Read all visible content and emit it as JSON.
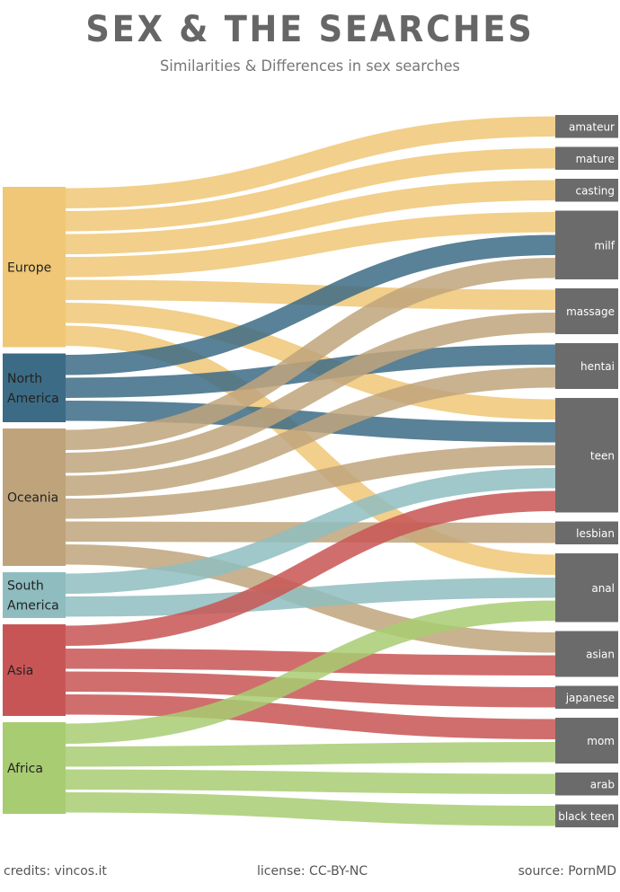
{
  "title": "SEX & THE  SEARCHES",
  "subtitle": "Similarities & Differences in sex searches",
  "footer": {
    "credits": "credits: vincos.it",
    "license": "license: CC-BY-NC",
    "source": "source: PornMD"
  },
  "colors": {
    "Europe": "#f0c776",
    "North America": "#3c6b85",
    "Oceania": "#bfa47b",
    "South America": "#8fbdbf",
    "Asia": "#c85555",
    "Africa": "#a8cc72",
    "category_box": "#6b6b6b",
    "category_text": "#ffffff"
  },
  "sources": [
    {
      "id": "Europe",
      "label_lines": [
        "Europe"
      ]
    },
    {
      "id": "North America",
      "label_lines": [
        "North",
        "America"
      ]
    },
    {
      "id": "Oceania",
      "label_lines": [
        "Oceania"
      ]
    },
    {
      "id": "South America",
      "label_lines": [
        "South",
        "America"
      ]
    },
    {
      "id": "Asia",
      "label_lines": [
        "Asia"
      ]
    },
    {
      "id": "Africa",
      "label_lines": [
        "Africa"
      ]
    }
  ],
  "categories": [
    {
      "id": "amateur",
      "label": "amateur"
    },
    {
      "id": "mature",
      "label": "mature"
    },
    {
      "id": "casting",
      "label": "casting"
    },
    {
      "id": "milf",
      "label": "milf"
    },
    {
      "id": "massage",
      "label": "massage"
    },
    {
      "id": "hentai",
      "label": "hentai"
    },
    {
      "id": "teen",
      "label": "teen"
    },
    {
      "id": "lesbian",
      "label": "lesbian"
    },
    {
      "id": "anal",
      "label": "anal"
    },
    {
      "id": "asian",
      "label": "asian"
    },
    {
      "id": "japanese",
      "label": "japanese"
    },
    {
      "id": "mom",
      "label": "mom"
    },
    {
      "id": "arab",
      "label": "arab"
    },
    {
      "id": "black teen",
      "label": "black teen"
    }
  ],
  "links": [
    {
      "source": "Europe",
      "target": "amateur",
      "value": 1
    },
    {
      "source": "Europe",
      "target": "mature",
      "value": 1
    },
    {
      "source": "Europe",
      "target": "casting",
      "value": 1
    },
    {
      "source": "Europe",
      "target": "milf",
      "value": 1
    },
    {
      "source": "Europe",
      "target": "massage",
      "value": 1
    },
    {
      "source": "Europe",
      "target": "teen",
      "value": 1
    },
    {
      "source": "Europe",
      "target": "anal",
      "value": 1
    },
    {
      "source": "North America",
      "target": "milf",
      "value": 1
    },
    {
      "source": "North America",
      "target": "hentai",
      "value": 1
    },
    {
      "source": "North America",
      "target": "teen",
      "value": 1
    },
    {
      "source": "Oceania",
      "target": "milf",
      "value": 1
    },
    {
      "source": "Oceania",
      "target": "massage",
      "value": 1
    },
    {
      "source": "Oceania",
      "target": "hentai",
      "value": 1
    },
    {
      "source": "Oceania",
      "target": "teen",
      "value": 1
    },
    {
      "source": "Oceania",
      "target": "lesbian",
      "value": 1
    },
    {
      "source": "Oceania",
      "target": "asian",
      "value": 1
    },
    {
      "source": "South America",
      "target": "teen",
      "value": 1
    },
    {
      "source": "South America",
      "target": "anal",
      "value": 1
    },
    {
      "source": "Asia",
      "target": "teen",
      "value": 1
    },
    {
      "source": "Asia",
      "target": "asian",
      "value": 1
    },
    {
      "source": "Asia",
      "target": "japanese",
      "value": 1
    },
    {
      "source": "Asia",
      "target": "mom",
      "value": 1
    },
    {
      "source": "Africa",
      "target": "anal",
      "value": 1
    },
    {
      "source": "Africa",
      "target": "mom",
      "value": 1
    },
    {
      "source": "Africa",
      "target": "arab",
      "value": 1
    },
    {
      "source": "Africa",
      "target": "black teen",
      "value": 1
    }
  ]
}
